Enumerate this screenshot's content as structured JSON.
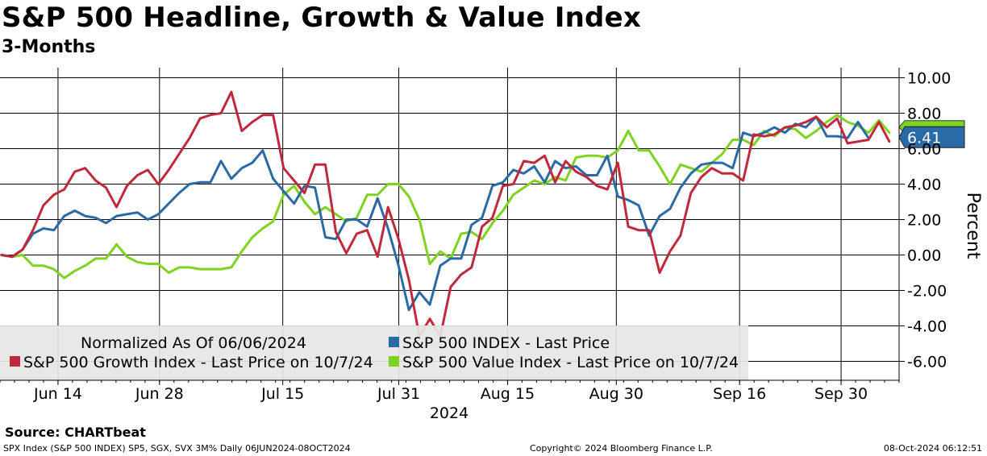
{
  "chart_data": {
    "type": "line",
    "title": "S&P 500 Headline, Growth & Value Index",
    "subtitle": "3-Months",
    "ylabel": "Percent",
    "xlabel": "2024",
    "ylim": [
      -7,
      10.5
    ],
    "yticks": [
      10,
      8,
      6,
      4,
      2,
      0,
      -2,
      -4,
      -6
    ],
    "ytick_labels": [
      "10.00",
      "8.00",
      "6.00",
      "4.00",
      "2.00",
      "0.00",
      "-2.00",
      "-4.00",
      "-6.00"
    ],
    "xlim": [
      0,
      90
    ],
    "xticks": [
      {
        "day": 8,
        "label": "Jun 14"
      },
      {
        "day": 22,
        "label": "Jun 28"
      },
      {
        "day": 39,
        "label": "Jul 15"
      },
      {
        "day": 55,
        "label": "Jul 31"
      },
      {
        "day": 70,
        "label": "Aug 15"
      },
      {
        "day": 85,
        "label": "Aug 30"
      },
      {
        "day": 102,
        "label": "Sep 16"
      },
      {
        "day": 116,
        "label": "Sep 30"
      }
    ],
    "x_day_range": [
      0,
      124
    ],
    "legend": {
      "header": "Normalized As Of 06/06/2024",
      "position": "bottom-left"
    },
    "series": [
      {
        "name": "S&P 500 INDEX - Last Price",
        "color": "#2a6aa6",
        "last_label": "6.41",
        "values": [
          0.0,
          -0.1,
          0.3,
          1.2,
          1.5,
          1.4,
          2.2,
          2.5,
          2.2,
          2.1,
          1.8,
          2.2,
          2.3,
          2.4,
          2.0,
          2.3,
          2.9,
          3.5,
          4.0,
          4.1,
          4.1,
          5.3,
          4.3,
          4.9,
          5.2,
          5.9,
          4.3,
          3.6,
          2.9,
          3.9,
          3.8,
          1.0,
          0.9,
          2.0,
          2.0,
          1.6,
          3.2,
          1.5,
          -0.6,
          -3.1,
          -2.1,
          -2.8,
          -0.6,
          -0.2,
          -0.2,
          1.7,
          2.1,
          3.9,
          4.1,
          4.8,
          4.6,
          5.0,
          4.1,
          5.3,
          4.9,
          5.0,
          4.5,
          4.5,
          5.6,
          3.3,
          3.1,
          2.8,
          1.1,
          2.2,
          2.6,
          3.8,
          4.6,
          5.1,
          5.2,
          5.2,
          4.9,
          6.9,
          6.7,
          6.9,
          7.2,
          6.9,
          7.4,
          7.2,
          7.8,
          6.7,
          6.7,
          6.6,
          7.5,
          6.6
        ]
      },
      {
        "name": "S&P 500 Growth Index - Last Price on 10/7/24",
        "color": "#c0283c",
        "last_label": "",
        "values": [
          0.0,
          -0.1,
          0.3,
          1.4,
          2.8,
          3.4,
          3.7,
          4.7,
          4.9,
          4.2,
          3.8,
          2.7,
          3.9,
          4.5,
          4.8,
          4.0,
          4.8,
          5.7,
          6.6,
          7.7,
          7.9,
          8.0,
          9.2,
          7.0,
          7.5,
          7.9,
          7.9,
          4.9,
          4.2,
          3.5,
          5.1,
          5.1,
          1.3,
          0.1,
          1.2,
          1.4,
          -0.1,
          2.7,
          0.9,
          -1.4,
          -4.6,
          -3.6,
          -4.6,
          -1.8,
          -1.1,
          -0.7,
          1.6,
          2.1,
          3.9,
          4.0,
          5.3,
          5.2,
          5.6,
          4.1,
          5.3,
          4.7,
          4.4,
          3.9,
          3.7,
          5.2,
          1.6,
          1.4,
          1.4,
          -1.0,
          0.2,
          1.1,
          3.5,
          4.4,
          4.9,
          4.6,
          4.6,
          4.2,
          6.8,
          6.7,
          6.8,
          7.2,
          7.3,
          7.5,
          7.8,
          7.2,
          7.7,
          6.3,
          6.4,
          6.5,
          7.5,
          6.4
        ]
      },
      {
        "name": "S&P 500 Value Index - Last Price on 10/7/24",
        "color": "#7ed321",
        "last_label": "",
        "values": [
          0.0,
          -0.1,
          0.0,
          -0.6,
          -0.6,
          -0.8,
          -1.3,
          -0.9,
          -0.6,
          -0.2,
          -0.2,
          0.6,
          -0.1,
          -0.4,
          -0.5,
          -0.5,
          -1.0,
          -0.7,
          -0.7,
          -0.8,
          -0.8,
          -0.8,
          -0.7,
          0.2,
          1.0,
          1.5,
          1.9,
          3.4,
          3.9,
          3.0,
          2.3,
          2.7,
          2.3,
          1.9,
          2.1,
          3.4,
          3.4,
          4.0,
          4.0,
          3.3,
          2.0,
          -0.5,
          0.2,
          -0.2,
          1.2,
          1.3,
          0.9,
          1.8,
          2.5,
          3.4,
          3.8,
          4.2,
          4.0,
          4.4,
          4.2,
          5.5,
          5.6,
          5.6,
          5.5,
          5.9,
          7.0,
          5.9,
          5.9,
          5.0,
          4.0,
          5.1,
          4.9,
          4.7,
          5.2,
          5.7,
          6.5,
          6.5,
          6.2,
          7.0,
          6.7,
          7.2,
          7.1,
          6.6,
          7.0,
          7.5,
          7.9,
          7.5,
          7.3,
          6.9,
          7.6,
          6.9
        ]
      }
    ],
    "year_label": "2024"
  },
  "source": "Source:  CHARTbeat",
  "footer": {
    "left": "SPX Index (S&P 500 INDEX) SP5, SGX, SVX 3M%  Daily 06JUN2024-08OCT2024",
    "middle": "Copyright© 2024 Bloomberg Finance L.P.",
    "right": "08-Oct-2024 06:12:51"
  }
}
